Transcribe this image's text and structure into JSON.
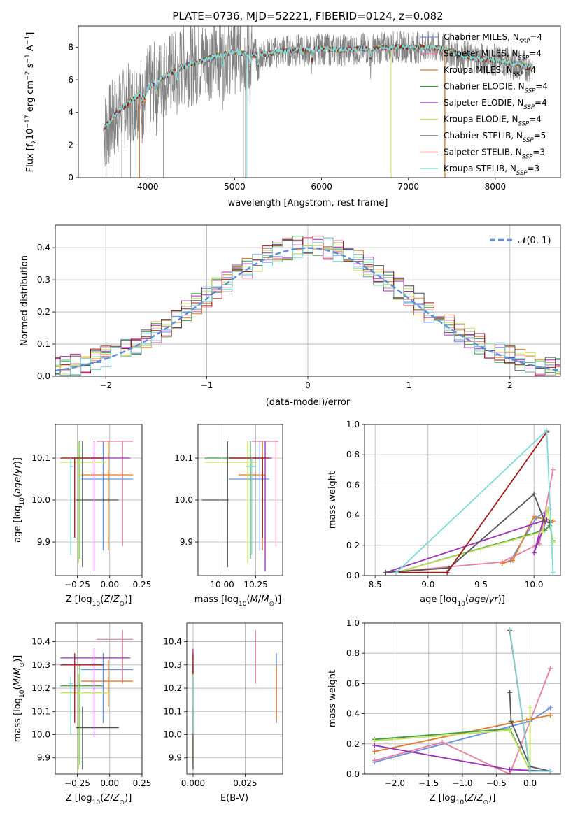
{
  "colors": {
    "chabrier_miles": "#6b8fde",
    "salpeter_miles": "#e8809f",
    "kroupa_miles": "#e07b2a",
    "chabrier_elodie": "#3d9b4a",
    "salpeter_elodie": "#9b30b6",
    "kroupa_elodie": "#c8e05a",
    "chabrier_stelib": "#555555",
    "salpeter_stelib": "#a01818",
    "kroupa_stelib": "#7fdad8",
    "data": "#808080",
    "gauss": "#5b8fd8"
  },
  "chart_data": [
    {
      "id": "spectrum",
      "type": "line",
      "title": "PLATE=0736, MJD=52221, FIBERID=0124, z=0.082",
      "xlabel": "wavelength [Angstrom, rest frame]",
      "ylabel": "Flux [f$_\\lambda$10$^{-17}$ erg cm$^{-2}$ s$^{-1}$ A$^{-1}$]",
      "xlim": [
        3200,
        8750
      ],
      "ylim": [
        0,
        9.3
      ],
      "xticks": [
        "4000",
        "5000",
        "6000",
        "7000",
        "8000"
      ],
      "yticks": [
        "0",
        "2",
        "4",
        "6",
        "8"
      ],
      "legend_position": "right",
      "legend": [
        {
          "key": "chabrier_miles",
          "label": "Chabrier MILES, N_SSP=4"
        },
        {
          "key": "salpeter_miles",
          "label": "Salpeter MILES, N_SSP=4"
        },
        {
          "key": "kroupa_miles",
          "label": "Kroupa MILES, N_SSP=4"
        },
        {
          "key": "chabrier_elodie",
          "label": "Chabrier ELODIE, N_SSP=4"
        },
        {
          "key": "salpeter_elodie",
          "label": "Salpeter ELODIE, N_SSP=4"
        },
        {
          "key": "kroupa_elodie",
          "label": "Kroupa ELODIE, N_SSP=4"
        },
        {
          "key": "chabrier_stelib",
          "label": "Chabrier STELIB, N_SSP=5"
        },
        {
          "key": "salpeter_stelib",
          "label": "Salpeter STELIB, N_SSP=3"
        },
        {
          "key": "kroupa_stelib",
          "label": "Kroupa STELIB, N_SSP=3"
        }
      ],
      "continuum": {
        "x": [
          3500,
          3600,
          3700,
          3800,
          3900,
          4000,
          4100,
          4200,
          4400,
          4600,
          4800,
          5000,
          5200,
          5400,
          5600,
          5800,
          6000,
          6200,
          6400,
          6600,
          6800,
          7000,
          7200,
          7400,
          7600,
          7800,
          8000,
          8200,
          8400
        ],
        "y": [
          3.6,
          4.2,
          4.6,
          4.9,
          5.2,
          5.5,
          5.9,
          6.2,
          6.8,
          7.1,
          7.5,
          7.7,
          7.5,
          7.6,
          7.8,
          7.8,
          7.9,
          7.8,
          7.9,
          7.9,
          8.0,
          8.0,
          8.0,
          7.9,
          7.5,
          7.3,
          7.2,
          7.0,
          6.8
        ]
      }
    },
    {
      "id": "residuals",
      "type": "histogram",
      "xlabel": "(data-model)/error",
      "ylabel": "Normed distribution",
      "xlim": [
        -2.5,
        2.5
      ],
      "ylim": [
        0,
        0.47
      ],
      "xticks": [
        "−2",
        "−1",
        "0",
        "1",
        "2"
      ],
      "yticks": [
        "0.0",
        "0.1",
        "0.2",
        "0.3",
        "0.4"
      ],
      "grid": true,
      "legend_position": "top-right",
      "legend_label": "𝒩(0, 1)",
      "bin_width": 0.1
    },
    {
      "id": "age_vs_z",
      "type": "errorbar",
      "xlabel": "Z [log10(Z/Z⊙)]",
      "ylabel": "age  [log10(age/yr)]",
      "xlim": [
        -0.42,
        0.25
      ],
      "ylim": [
        9.82,
        10.18
      ],
      "xticks": [
        "−0.25",
        "0.00",
        "0.25"
      ],
      "yticks": [
        "9.9",
        "10.0",
        "10.1"
      ],
      "grid": true,
      "points": [
        {
          "key": "chabrier_miles",
          "x": -0.05,
          "xlo": -0.22,
          "xhi": 0.18,
          "y": 10.05,
          "ylo": 9.88,
          "yhi": 10.14
        },
        {
          "key": "salpeter_miles",
          "x": 0.1,
          "xlo": -0.1,
          "xhi": 0.18,
          "y": 10.14,
          "ylo": 9.89,
          "yhi": 10.14
        },
        {
          "key": "kroupa_miles",
          "x": -0.01,
          "xlo": -0.22,
          "xhi": 0.18,
          "y": 10.06,
          "ylo": 9.88,
          "yhi": 10.14
        },
        {
          "key": "chabrier_elodie",
          "x": -0.23,
          "xlo": -0.38,
          "xhi": -0.05,
          "y": 10.1,
          "ylo": 9.86,
          "yhi": 10.14
        },
        {
          "key": "salpeter_elodie",
          "x": -0.12,
          "xlo": -0.3,
          "xhi": 0.16,
          "y": 10.1,
          "ylo": 9.83,
          "yhi": 10.14
        },
        {
          "key": "kroupa_elodie",
          "x": -0.24,
          "xlo": -0.38,
          "xhi": -0.03,
          "y": 10.09,
          "ylo": 9.85,
          "yhi": 10.14
        },
        {
          "key": "chabrier_stelib",
          "x": -0.21,
          "xlo": -0.26,
          "xhi": 0.07,
          "y": 10.0,
          "ylo": 9.84,
          "yhi": 10.14
        },
        {
          "key": "salpeter_stelib",
          "x": -0.27,
          "xlo": -0.38,
          "xhi": -0.05,
          "y": 10.1,
          "ylo": 9.91,
          "yhi": 10.1
        },
        {
          "key": "kroupa_stelib",
          "x": -0.3,
          "xlo": -0.31,
          "xhi": -0.28,
          "y": 10.08,
          "ylo": 9.87,
          "yhi": 10.1
        }
      ]
    },
    {
      "id": "age_vs_mass",
      "type": "errorbar",
      "xlabel": "mass [log10(M/M⊙)]",
      "xlim": [
        9.82,
        10.45
      ],
      "ylim": [
        9.82,
        10.18
      ],
      "xticks": [
        "10.00",
        "10.25"
      ],
      "yticks": [
        "9.9",
        "10.0",
        "10.1"
      ],
      "grid": true,
      "points": [
        {
          "key": "chabrier_miles",
          "x": 10.28,
          "xlo": 10.05,
          "xhi": 10.35,
          "y": 10.05,
          "ylo": 9.88,
          "yhi": 10.14
        },
        {
          "key": "salpeter_miles",
          "x": 10.4,
          "xlo": 10.22,
          "xhi": 10.42,
          "y": 10.14,
          "ylo": 9.89,
          "yhi": 10.14
        },
        {
          "key": "kroupa_miles",
          "x": 10.3,
          "xlo": 10.12,
          "xhi": 10.32,
          "y": 10.06,
          "ylo": 9.88,
          "yhi": 10.14
        },
        {
          "key": "chabrier_elodie",
          "x": 10.21,
          "xlo": 9.87,
          "xhi": 10.3,
          "y": 10.1,
          "ylo": 9.86,
          "yhi": 10.14
        },
        {
          "key": "salpeter_elodie",
          "x": 10.32,
          "xlo": 10.05,
          "xhi": 10.37,
          "y": 10.1,
          "ylo": 9.83,
          "yhi": 10.14
        },
        {
          "key": "kroupa_elodie",
          "x": 10.19,
          "xlo": 9.87,
          "xhi": 10.26,
          "y": 10.09,
          "ylo": 9.85,
          "yhi": 10.14
        },
        {
          "key": "chabrier_stelib",
          "x": 10.04,
          "xlo": 9.85,
          "xhi": 10.05,
          "y": 10.0,
          "ylo": 9.84,
          "yhi": 10.14
        },
        {
          "key": "salpeter_stelib",
          "x": 10.3,
          "xlo": 10.05,
          "xhi": 10.35,
          "y": 10.1,
          "ylo": 9.91,
          "yhi": 10.1
        },
        {
          "key": "kroupa_stelib",
          "x": 10.22,
          "xlo": 10.18,
          "xhi": 10.25,
          "y": 10.08,
          "ylo": 9.87,
          "yhi": 10.1
        }
      ]
    },
    {
      "id": "weight_vs_age",
      "type": "line",
      "xlabel": "age  [log10(age/yr)]",
      "ylabel": "mass weight",
      "xlim": [
        8.4,
        10.25
      ],
      "ylim": [
        0,
        1.0
      ],
      "xticks": [
        "8.5",
        "9.0",
        "9.5",
        "10.0"
      ],
      "yticks": [
        "0.0",
        "0.2",
        "0.4",
        "0.6",
        "0.8",
        "1.0"
      ],
      "grid": true,
      "series": [
        {
          "key": "chabrier_miles",
          "x": [
            9.7,
            9.78,
            10.02,
            10.14
          ],
          "y": [
            0.08,
            0.1,
            0.38,
            0.44
          ]
        },
        {
          "key": "salpeter_miles",
          "x": [
            8.6,
            9.7,
            10.05,
            10.18
          ],
          "y": [
            0.02,
            0.09,
            0.21,
            0.7
          ]
        },
        {
          "key": "kroupa_miles",
          "x": [
            9.7,
            9.8,
            10.0,
            10.18
          ],
          "y": [
            0.08,
            0.1,
            0.39,
            0.36
          ]
        },
        {
          "key": "chabrier_elodie",
          "x": [
            8.7,
            10.1,
            10.15,
            10.18
          ],
          "y": [
            0.02,
            0.3,
            0.33,
            0.23
          ]
        },
        {
          "key": "salpeter_elodie",
          "x": [
            8.6,
            10.12,
            10.0,
            10.1
          ],
          "y": [
            0.02,
            0.37,
            0.15,
            0.4
          ]
        },
        {
          "key": "kroupa_elodie",
          "x": [
            8.7,
            10.08,
            10.13,
            10.18
          ],
          "y": [
            0.02,
            0.29,
            0.44,
            0.22
          ]
        },
        {
          "key": "chabrier_stelib",
          "x": [
            8.6,
            9.2,
            10.0,
            10.1,
            10.15
          ],
          "y": [
            0.02,
            0.05,
            0.54,
            0.36,
            0.35
          ]
        },
        {
          "key": "salpeter_stelib",
          "x": [
            8.7,
            9.18,
            10.12
          ],
          "y": [
            0.02,
            0.02,
            0.95
          ]
        },
        {
          "key": "kroupa_stelib",
          "x": [
            8.7,
            10.12,
            10.18
          ],
          "y": [
            0.02,
            0.96,
            0.02
          ]
        }
      ]
    },
    {
      "id": "mass_vs_z",
      "type": "errorbar",
      "xlabel": "Z [log10(Z/Z⊙)]",
      "ylabel": "mass [log10(M/M⊙)]",
      "xlim": [
        -0.42,
        0.25
      ],
      "ylim": [
        9.83,
        10.48
      ],
      "xticks": [
        "−0.25",
        "0.00",
        "0.25"
      ],
      "yticks": [
        "9.9",
        "10.0",
        "10.1",
        "10.2",
        "10.3",
        "10.4"
      ],
      "grid": true,
      "points": [
        {
          "key": "chabrier_miles",
          "x": -0.05,
          "xlo": -0.22,
          "xhi": 0.18,
          "y": 10.28,
          "ylo": 10.05,
          "yhi": 10.35
        },
        {
          "key": "salpeter_miles",
          "x": 0.1,
          "xlo": -0.1,
          "xhi": 0.18,
          "y": 10.41,
          "ylo": 10.22,
          "yhi": 10.45
        },
        {
          "key": "kroupa_miles",
          "x": -0.01,
          "xlo": -0.22,
          "xhi": 0.18,
          "y": 10.23,
          "ylo": 10.12,
          "yhi": 10.32
        },
        {
          "key": "chabrier_elodie",
          "x": -0.23,
          "xlo": -0.38,
          "xhi": -0.05,
          "y": 10.21,
          "ylo": 9.87,
          "yhi": 10.3
        },
        {
          "key": "salpeter_elodie",
          "x": -0.12,
          "xlo": -0.38,
          "xhi": 0.16,
          "y": 10.33,
          "ylo": 9.99,
          "yhi": 10.37
        },
        {
          "key": "kroupa_elodie",
          "x": -0.24,
          "xlo": -0.38,
          "xhi": 0.0,
          "y": 10.18,
          "ylo": 9.85,
          "yhi": 10.26
        },
        {
          "key": "chabrier_stelib",
          "x": -0.21,
          "xlo": -0.26,
          "xhi": 0.07,
          "y": 10.03,
          "ylo": 9.85,
          "yhi": 10.12
        },
        {
          "key": "salpeter_stelib",
          "x": -0.27,
          "xlo": -0.38,
          "xhi": -0.05,
          "y": 10.3,
          "ylo": 10.05,
          "yhi": 10.35
        },
        {
          "key": "kroupa_stelib",
          "x": -0.3,
          "xlo": -0.31,
          "xhi": -0.28,
          "y": 10.22,
          "ylo": 10.0,
          "yhi": 10.25
        }
      ]
    },
    {
      "id": "mass_vs_ebv",
      "type": "errorbar",
      "xlabel": "E(B-V)",
      "xlim": [
        -0.003,
        0.043
      ],
      "ylim": [
        9.83,
        10.48
      ],
      "xticks": [
        "0.000",
        "0.025"
      ],
      "yticks": [
        "9.9",
        "10.0",
        "10.1",
        "10.2",
        "10.3",
        "10.4"
      ],
      "grid": true,
      "points": [
        {
          "key": "chabrier_miles",
          "x": 0.04,
          "y": 10.28,
          "ylo": 10.05,
          "yhi": 10.35
        },
        {
          "key": "salpeter_miles",
          "x": 0.03,
          "y": 10.41,
          "ylo": 10.22,
          "yhi": 10.45
        },
        {
          "key": "kroupa_miles",
          "x": 0.04,
          "y": 10.23,
          "ylo": 10.06,
          "yhi": 10.3
        },
        {
          "key": "chabrier_elodie",
          "x": 0.0,
          "y": 10.21,
          "ylo": 9.87,
          "yhi": 10.3
        },
        {
          "key": "salpeter_elodie",
          "x": 0.0,
          "y": 10.33,
          "ylo": 9.99,
          "yhi": 10.37
        },
        {
          "key": "kroupa_elodie",
          "x": 0.0,
          "y": 10.18,
          "ylo": 9.85,
          "yhi": 10.26
        },
        {
          "key": "chabrier_stelib",
          "x": 0.0,
          "y": 10.03,
          "ylo": 9.85,
          "yhi": 10.12
        },
        {
          "key": "salpeter_stelib",
          "x": 0.0,
          "y": 10.3,
          "ylo": 10.26,
          "yhi": 10.35
        },
        {
          "key": "kroupa_stelib",
          "x": 0.0,
          "y": 10.22,
          "ylo": 10.0,
          "yhi": 10.25
        }
      ]
    },
    {
      "id": "weight_vs_z",
      "type": "line",
      "xlabel": "Z [log10(Z/Z⊙)]",
      "ylabel": "mass weight",
      "xlim": [
        -2.45,
        0.45
      ],
      "ylim": [
        0,
        1.0
      ],
      "xticks": [
        "−2.0",
        "−1.5",
        "−1.0",
        "−0.5",
        "0.0"
      ],
      "yticks": [
        "0.0",
        "0.2",
        "0.4",
        "0.6",
        "0.8",
        "1.0"
      ],
      "grid": true,
      "series": [
        {
          "key": "chabrier_miles",
          "x": [
            -2.3,
            0.0,
            0.3
          ],
          "y": [
            0.08,
            0.35,
            0.44
          ]
        },
        {
          "key": "salpeter_miles",
          "x": [
            -2.3,
            -1.3,
            -0.3,
            0.3
          ],
          "y": [
            0.09,
            0.21,
            0.0,
            0.7
          ]
        },
        {
          "key": "kroupa_miles",
          "x": [
            -2.3,
            -0.05,
            0.3
          ],
          "y": [
            0.15,
            0.36,
            0.39
          ]
        },
        {
          "key": "chabrier_elodie",
          "x": [
            -2.3,
            -0.3,
            0.0
          ],
          "y": [
            0.23,
            0.3,
            0.02
          ]
        },
        {
          "key": "salpeter_elodie",
          "x": [
            -2.3,
            -0.3,
            0.3
          ],
          "y": [
            0.19,
            0.03,
            0.02
          ]
        },
        {
          "key": "kroupa_elodie",
          "x": [
            -2.3,
            -0.3,
            0.0,
            0.0
          ],
          "y": [
            0.22,
            0.29,
            0.02,
            0.44
          ]
        },
        {
          "key": "chabrier_stelib",
          "x": [
            -0.3,
            -0.28,
            0.0,
            0.3
          ],
          "y": [
            0.54,
            0.35,
            0.05,
            0.02
          ]
        },
        {
          "key": "salpeter_stelib",
          "x": [
            -0.3,
            0.0
          ],
          "y": [
            0.95,
            0.02
          ]
        },
        {
          "key": "kroupa_stelib",
          "x": [
            -0.3,
            0.0,
            0.3
          ],
          "y": [
            0.96,
            0.02,
            0.02
          ]
        }
      ]
    }
  ]
}
